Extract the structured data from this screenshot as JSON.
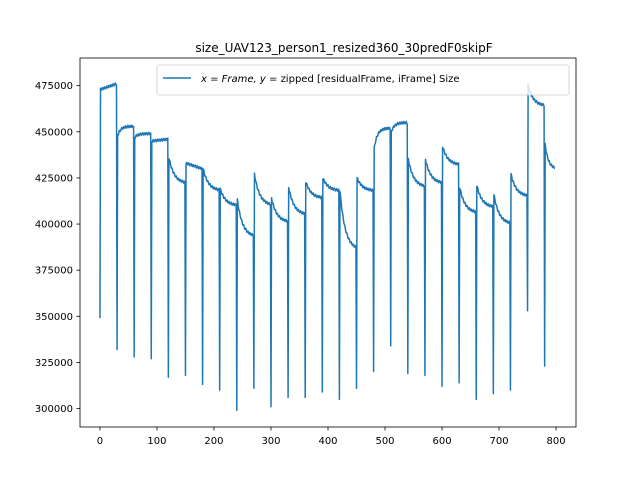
{
  "chart_data": {
    "type": "line",
    "title": "size_UAV123_person1_resized360_30predF0skipF",
    "xlabel": "",
    "ylabel": "",
    "xlim": [
      -35,
      835
    ],
    "ylim": [
      290000,
      490000
    ],
    "x_ticks": [
      0,
      100,
      200,
      300,
      400,
      500,
      600,
      700,
      800
    ],
    "y_ticks": [
      300000,
      325000,
      350000,
      375000,
      400000,
      425000,
      450000,
      475000
    ],
    "grid": false,
    "legend_position": "top-right",
    "series_color": "#1f77b4",
    "series": [
      {
        "name": "x = Frame, y =  zipped [residualFrame, iFrame] Size",
        "name_math": "x = Frame, y = ",
        "name_text": " zipped [residualFrame, iFrame] Size",
        "segments": [
          {
            "start": 0,
            "first": 349000,
            "jump": 473000,
            "end": 476000,
            "shape": "flat"
          },
          {
            "start": 30,
            "first": 332000,
            "jump": 448000,
            "end": 453000,
            "shape": "rise"
          },
          {
            "start": 60,
            "first": 328000,
            "jump": 447000,
            "end": 449000,
            "shape": "rise"
          },
          {
            "start": 90,
            "first": 327000,
            "jump": 445000,
            "end": 446000,
            "shape": "flat"
          },
          {
            "start": 120,
            "first": 317000,
            "jump": 436000,
            "end": 422000,
            "shape": "decay"
          },
          {
            "start": 150,
            "first": 318000,
            "jump": 433000,
            "end": 430000,
            "shape": "flat"
          },
          {
            "start": 180,
            "first": 313000,
            "jump": 430000,
            "end": 418000,
            "shape": "decay"
          },
          {
            "start": 210,
            "first": 310000,
            "jump": 419000,
            "end": 410000,
            "shape": "decay"
          },
          {
            "start": 240,
            "first": 299000,
            "jump": 413000,
            "end": 393000,
            "shape": "decay"
          },
          {
            "start": 270,
            "first": 311000,
            "jump": 427000,
            "end": 410000,
            "shape": "decay"
          },
          {
            "start": 300,
            "first": 301000,
            "jump": 414000,
            "end": 401000,
            "shape": "decay"
          },
          {
            "start": 330,
            "first": 306000,
            "jump": 420000,
            "end": 405000,
            "shape": "decay"
          },
          {
            "start": 360,
            "first": 306000,
            "jump": 423000,
            "end": 414000,
            "shape": "decay"
          },
          {
            "start": 390,
            "first": 309000,
            "jump": 425000,
            "end": 418000,
            "shape": "decay"
          },
          {
            "start": 420,
            "first": 305000,
            "jump": 418000,
            "end": 386000,
            "shape": "decay"
          },
          {
            "start": 450,
            "first": 311000,
            "jump": 425000,
            "end": 418000,
            "shape": "decay"
          },
          {
            "start": 480,
            "first": 320000,
            "jump": 441000,
            "end": 452000,
            "shape": "rise"
          },
          {
            "start": 510,
            "first": 334000,
            "jump": 450000,
            "end": 455000,
            "shape": "rise"
          },
          {
            "start": 540,
            "first": 319000,
            "jump": 435000,
            "end": 420000,
            "shape": "decay"
          },
          {
            "start": 570,
            "first": 318000,
            "jump": 435000,
            "end": 422000,
            "shape": "decay"
          },
          {
            "start": 600,
            "first": 312000,
            "jump": 442000,
            "end": 432000,
            "shape": "decay"
          },
          {
            "start": 630,
            "first": 314000,
            "jump": 420000,
            "end": 406000,
            "shape": "decay"
          },
          {
            "start": 660,
            "first": 305000,
            "jump": 421000,
            "end": 409000,
            "shape": "decay"
          },
          {
            "start": 690,
            "first": 308000,
            "jump": 416000,
            "end": 400000,
            "shape": "decay"
          },
          {
            "start": 720,
            "first": 310000,
            "jump": 427000,
            "end": 415000,
            "shape": "decay"
          },
          {
            "start": 750,
            "first": 353000,
            "jump": 475000,
            "end": 464000,
            "shape": "decay"
          },
          {
            "start": 780,
            "first": 323000,
            "jump": 443000,
            "end": 430000,
            "shape": "decay"
          }
        ],
        "last_frame": 798
      }
    ]
  }
}
